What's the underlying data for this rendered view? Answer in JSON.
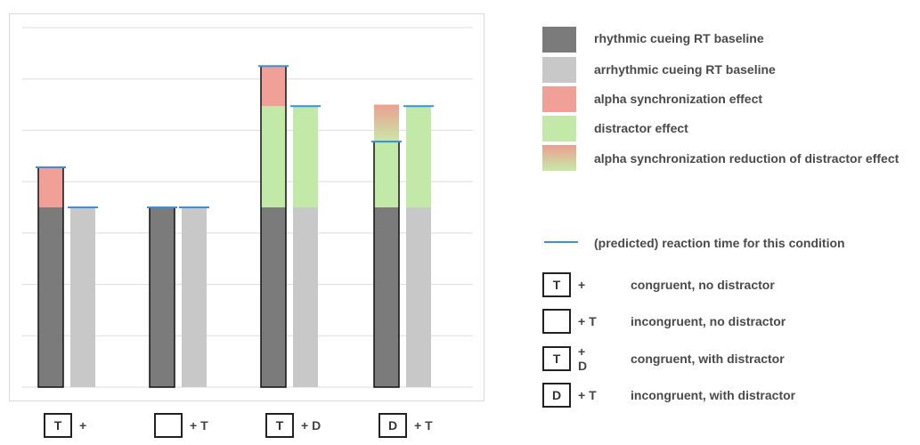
{
  "chart_data": {
    "type": "bar",
    "ylim": [
      0,
      7
    ],
    "grid": true,
    "legend_position": "right",
    "categories": [
      {
        "box": "T",
        "symbols": "+",
        "box_first": true
      },
      {
        "box": "",
        "symbols": "+ T",
        "box_first": true
      },
      {
        "box": "T",
        "symbols": "+  D",
        "box_first": true
      },
      {
        "box": "D",
        "symbols": "+  T",
        "box_first": true
      }
    ],
    "groups": [
      {
        "bars": [
          {
            "base": "rhythmic",
            "segments": [
              {
                "kind": "rhythmic",
                "value": 3.5
              },
              {
                "kind": "alpha",
                "value": 0.78
              }
            ],
            "rt": 4.28
          },
          {
            "base": "arrhythmic",
            "segments": [
              {
                "kind": "arrhythmic",
                "value": 3.5
              }
            ],
            "rt": 3.5
          }
        ]
      },
      {
        "bars": [
          {
            "base": "rhythmic",
            "segments": [
              {
                "kind": "rhythmic",
                "value": 3.5
              }
            ],
            "rt": 3.5
          },
          {
            "base": "arrhythmic",
            "segments": [
              {
                "kind": "arrhythmic",
                "value": 3.5
              }
            ],
            "rt": 3.5
          }
        ]
      },
      {
        "bars": [
          {
            "base": "rhythmic",
            "segments": [
              {
                "kind": "rhythmic",
                "value": 3.5
              },
              {
                "kind": "distractor",
                "value": 1.97
              },
              {
                "kind": "alpha",
                "value": 0.78
              }
            ],
            "rt": 6.25
          },
          {
            "base": "arrhythmic",
            "segments": [
              {
                "kind": "arrhythmic",
                "value": 3.5
              },
              {
                "kind": "distractor",
                "value": 1.97
              }
            ],
            "rt": 5.47
          }
        ]
      },
      {
        "bars": [
          {
            "base": "rhythmic",
            "segments": [
              {
                "kind": "rhythmic",
                "value": 3.5
              },
              {
                "kind": "distractor",
                "value": 1.28
              },
              {
                "kind": "reduction",
                "value": 0.72
              }
            ],
            "rt": 4.78
          },
          {
            "base": "arrhythmic",
            "segments": [
              {
                "kind": "arrhythmic",
                "value": 3.5
              },
              {
                "kind": "distractor",
                "value": 1.97
              }
            ],
            "rt": 5.47
          }
        ]
      }
    ],
    "legend": [
      {
        "kind": "rhythmic",
        "label": "rhythmic cueing RT baseline"
      },
      {
        "kind": "arrhythmic",
        "label": "arrhythmic cueing RT baseline"
      },
      {
        "kind": "alpha",
        "label": "alpha synchronization effect"
      },
      {
        "kind": "distractor",
        "label": "distractor effect"
      },
      {
        "kind": "reduction",
        "label": "alpha synchronization reduction of distractor effect"
      }
    ],
    "rt_line_label": "(predicted) reaction time for this condition"
  },
  "colors": {
    "rhythmic": "#7b7b7b",
    "arrhythmic": "#c8c8c8",
    "alpha": "#f0a097",
    "distractor": "#c3e9a8",
    "reduction_top": "#eaa090",
    "reduction_bottom": "#c8e9a8",
    "rt_line": "#3c8fe0",
    "gridline": "#dddddd"
  },
  "conditions": [
    {
      "box": "T",
      "symbols": "+",
      "desc": "congruent, no distractor"
    },
    {
      "box": "",
      "symbols": "+ T",
      "desc": "incongruent, no distractor"
    },
    {
      "box": "T",
      "symbols": "+  D",
      "desc": "congruent, with distractor"
    },
    {
      "box": "D",
      "symbols": "+  T",
      "desc": "incongruent, with distractor"
    }
  ]
}
